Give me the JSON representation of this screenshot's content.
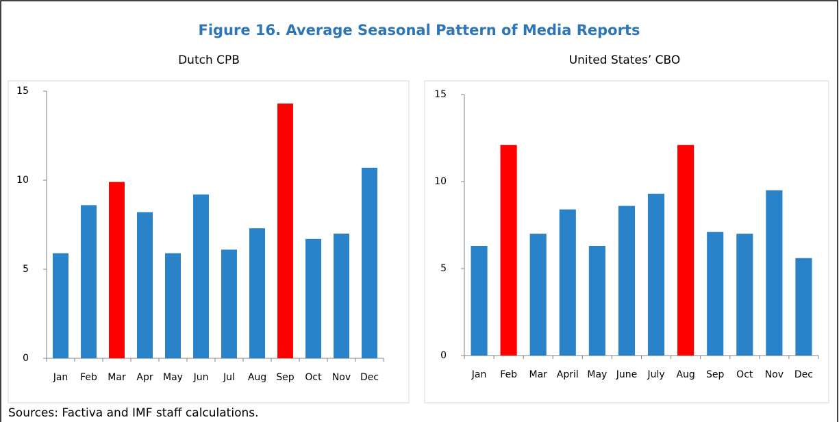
{
  "title": "Figure 16. Average Seasonal Pattern of Media Reports",
  "source": "Sources: Factiva and IMF staff calculations.",
  "chart_data": [
    {
      "type": "bar",
      "title": "Dutch CPB",
      "categories": [
        "Jan",
        "Feb",
        "Mar",
        "Apr",
        "May",
        "Jun",
        "Jul",
        "Aug",
        "Sep",
        "Oct",
        "Nov",
        "Dec"
      ],
      "values": [
        5.9,
        8.6,
        9.9,
        8.2,
        5.9,
        9.2,
        6.1,
        7.3,
        14.3,
        6.7,
        7.0,
        10.7
      ],
      "colors": [
        "#2a82c8",
        "#2a82c8",
        "#ff0000",
        "#2a82c8",
        "#2a82c8",
        "#2a82c8",
        "#2a82c8",
        "#2a82c8",
        "#ff0000",
        "#2a82c8",
        "#2a82c8",
        "#2a82c8"
      ],
      "ylim": [
        0,
        15
      ],
      "yticks": [
        0,
        5,
        10,
        15
      ]
    },
    {
      "type": "bar",
      "title": "United States’ CBO",
      "categories": [
        "Jan",
        "Feb",
        "Mar",
        "April",
        "May",
        "June",
        "July",
        "Aug",
        "Sep",
        "Oct",
        "Nov",
        "Dec"
      ],
      "values": [
        6.3,
        12.1,
        7.0,
        8.4,
        6.3,
        8.6,
        9.3,
        12.1,
        7.1,
        7.0,
        9.5,
        5.6
      ],
      "colors": [
        "#2a82c8",
        "#ff0000",
        "#2a82c8",
        "#2a82c8",
        "#2a82c8",
        "#2a82c8",
        "#2a82c8",
        "#ff0000",
        "#2a82c8",
        "#2a82c8",
        "#2a82c8",
        "#2a82c8"
      ],
      "ylim": [
        0,
        15
      ],
      "yticks": [
        0,
        5,
        10,
        15
      ]
    }
  ]
}
